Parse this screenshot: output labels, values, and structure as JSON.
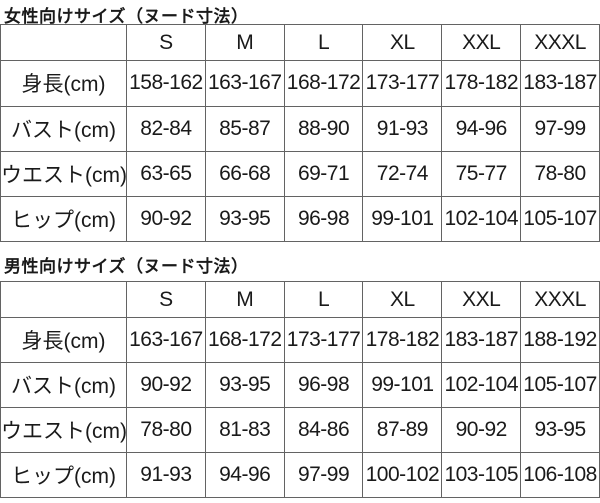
{
  "page": {
    "background": "#ffffff",
    "border_color": "#636363",
    "text_color": "#1a1a1a"
  },
  "tables": [
    {
      "title": "女性向けサイズ（ヌード寸法）",
      "header": [
        "",
        "S",
        "M",
        "L",
        "XL",
        "XXL",
        "XXXL"
      ],
      "rows": [
        {
          "label": "身長(cm)",
          "values": [
            "158-162",
            "163-167",
            "168-172",
            "173-177",
            "178-182",
            "183-187"
          ]
        },
        {
          "label": "バスト(cm)",
          "values": [
            "82-84",
            "85-87",
            "88-90",
            "91-93",
            "94-96",
            "97-99"
          ]
        },
        {
          "label": "ウエスト(cm)",
          "values": [
            "63-65",
            "66-68",
            "69-71",
            "72-74",
            "75-77",
            "78-80"
          ]
        },
        {
          "label": "ヒップ(cm)",
          "values": [
            "90-92",
            "93-95",
            "96-98",
            "99-101",
            "102-104",
            "105-107"
          ]
        }
      ]
    },
    {
      "title": "男性向けサイズ（ヌード寸法）",
      "header": [
        "",
        "S",
        "M",
        "L",
        "XL",
        "XXL",
        "XXXL"
      ],
      "rows": [
        {
          "label": "身長(cm)",
          "values": [
            "163-167",
            "168-172",
            "173-177",
            "178-182",
            "183-187",
            "188-192"
          ]
        },
        {
          "label": "バスト(cm)",
          "values": [
            "90-92",
            "93-95",
            "96-98",
            "99-101",
            "102-104",
            "105-107"
          ]
        },
        {
          "label": "ウエスト(cm)",
          "values": [
            "78-80",
            "81-83",
            "84-86",
            "87-89",
            "90-92",
            "93-95"
          ]
        },
        {
          "label": "ヒップ(cm)",
          "values": [
            "91-93",
            "94-96",
            "97-99",
            "100-102",
            "103-105",
            "106-108"
          ]
        }
      ]
    }
  ]
}
